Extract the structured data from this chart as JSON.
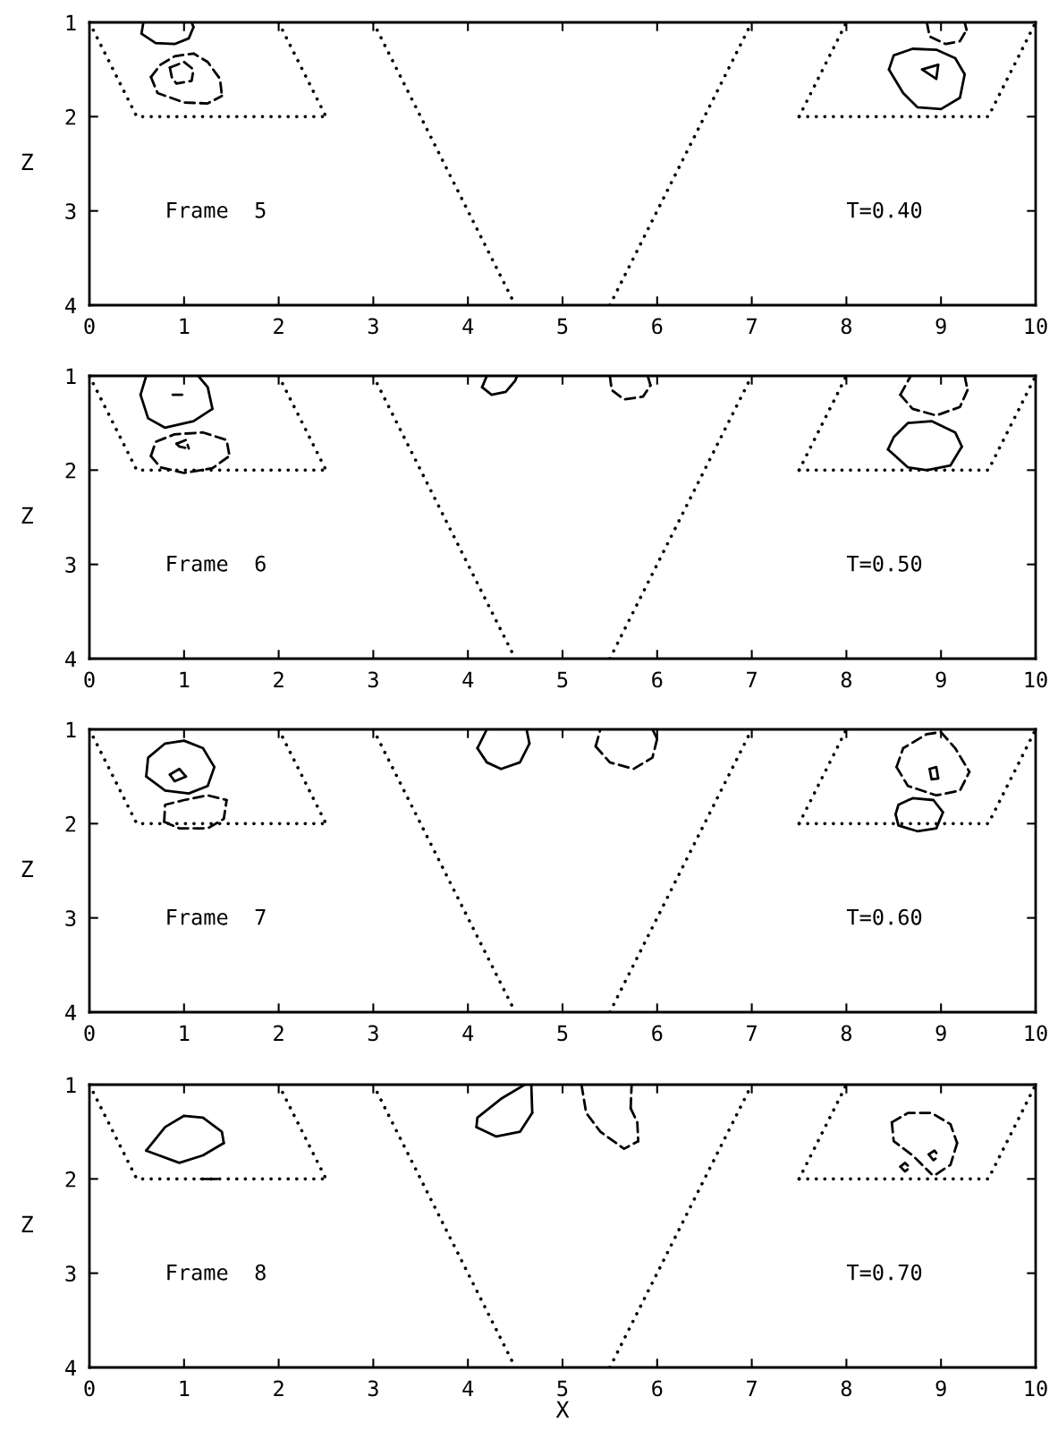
{
  "chart_data": [
    {
      "type": "line",
      "ylabel": "Z",
      "xlim": [
        0,
        10
      ],
      "ylim": [
        4,
        1
      ],
      "xticks": [
        0,
        1,
        2,
        3,
        4,
        5,
        6,
        7,
        8,
        9,
        10
      ],
      "yticks": [
        1,
        2,
        3,
        4
      ],
      "grid": false,
      "marker": "none",
      "annotations": [
        "Frame  5",
        "T=0.40"
      ],
      "series": [
        {
          "color": "#000000",
          "line_style": "solid",
          "x": [
            0.55,
            0.57
          ],
          "values": [
            1.12,
            1.0
          ]
        },
        {
          "color": "#000000",
          "line_style": "solid",
          "x": [
            0.55,
            0.7,
            0.9,
            1.05,
            1.1
          ],
          "values": [
            1.12,
            1.22,
            1.23,
            1.17,
            1.05
          ]
        },
        {
          "color": "#000000",
          "line_style": "solid",
          "x": [
            1.08,
            1.1
          ],
          "values": [
            1.0,
            1.05
          ]
        },
        {
          "color": "#000000",
          "line_style": "dashed",
          "x": [
            0.65,
            0.75,
            0.9,
            1.1,
            1.25,
            1.38,
            1.4
          ],
          "values": [
            1.58,
            1.45,
            1.36,
            1.33,
            1.42,
            1.6,
            1.78
          ]
        },
        {
          "color": "#000000",
          "line_style": "dashed",
          "x": [
            0.65,
            0.72,
            1.0,
            1.25,
            1.4
          ],
          "values": [
            1.58,
            1.75,
            1.85,
            1.86,
            1.78
          ]
        },
        {
          "color": "#000000",
          "line_style": "dashed",
          "x": [
            0.85,
            1.0,
            1.1
          ],
          "values": [
            1.48,
            1.42,
            1.5
          ]
        },
        {
          "color": "#000000",
          "line_style": "dashed",
          "x": [
            0.85,
            0.87,
            0.92,
            1.08,
            1.1
          ],
          "values": [
            1.48,
            1.58,
            1.65,
            1.62,
            1.5
          ]
        },
        {
          "color": "#000000",
          "line_style": "dashed",
          "x": [
            8.85,
            8.88,
            9.05,
            9.2,
            9.27
          ],
          "values": [
            1.0,
            1.15,
            1.23,
            1.2,
            1.08
          ]
        },
        {
          "color": "#000000",
          "line_style": "dashed",
          "x": [
            9.25,
            9.27
          ],
          "values": [
            1.0,
            1.08
          ]
        },
        {
          "color": "#000000",
          "line_style": "solid",
          "x": [
            8.45,
            8.5,
            8.7,
            8.95,
            9.15,
            9.25
          ],
          "values": [
            1.5,
            1.35,
            1.28,
            1.29,
            1.38,
            1.55
          ]
        },
        {
          "color": "#000000",
          "line_style": "solid",
          "x": [
            8.45,
            8.6,
            8.75,
            9.0,
            9.2,
            9.25
          ],
          "values": [
            1.5,
            1.75,
            1.9,
            1.92,
            1.8,
            1.55
          ]
        },
        {
          "color": "#000000",
          "line_style": "solid",
          "x": [
            8.8,
            8.97
          ],
          "values": [
            1.5,
            1.45
          ]
        },
        {
          "color": "#000000",
          "line_style": "solid",
          "x": [
            8.8,
            8.95,
            8.97
          ],
          "values": [
            1.5,
            1.6,
            1.45
          ]
        },
        {
          "color": "#000000",
          "line_style": "dotted",
          "x": [
            0,
            0.5,
            2.5
          ],
          "values": [
            1,
            2,
            2
          ]
        },
        {
          "color": "#000000",
          "line_style": "dotted",
          "x": [
            2,
            2.5
          ],
          "values": [
            1,
            2
          ]
        },
        {
          "color": "#000000",
          "line_style": "dotted",
          "x": [
            7.5,
            8
          ],
          "values": [
            2,
            1
          ]
        },
        {
          "color": "#000000",
          "line_style": "dotted",
          "x": [
            7.5,
            9.5,
            10
          ],
          "values": [
            2,
            2,
            1
          ]
        },
        {
          "color": "#000000",
          "line_style": "dotted",
          "x": [
            3,
            4.5
          ],
          "values": [
            1,
            4
          ]
        },
        {
          "color": "#000000",
          "line_style": "dotted",
          "x": [
            5.5,
            7
          ],
          "values": [
            4,
            1
          ]
        }
      ]
    },
    {
      "type": "line",
      "ylabel": "Z",
      "xlim": [
        0,
        10
      ],
      "ylim": [
        4,
        1
      ],
      "xticks": [
        0,
        1,
        2,
        3,
        4,
        5,
        6,
        7,
        8,
        9,
        10
      ],
      "yticks": [
        1,
        2,
        3,
        4
      ],
      "grid": false,
      "marker": "none",
      "annotations": [
        "Frame  6",
        "T=0.50"
      ],
      "series": [
        {
          "color": "#000000",
          "line_style": "solid",
          "x": [
            0.54,
            0.6
          ],
          "values": [
            1.2,
            1.0
          ]
        },
        {
          "color": "#000000",
          "line_style": "solid",
          "x": [
            0.54,
            0.62,
            0.8,
            1.1,
            1.3
          ],
          "values": [
            1.2,
            1.45,
            1.55,
            1.48,
            1.35
          ]
        },
        {
          "color": "#000000",
          "line_style": "solid",
          "x": [
            1.15,
            1.25,
            1.3
          ],
          "values": [
            1.0,
            1.12,
            1.35
          ]
        },
        {
          "color": "#000000",
          "line_style": "solid",
          "x": [
            0.88,
            0.98
          ],
          "values": [
            1.2,
            1.2
          ]
        },
        {
          "color": "#000000",
          "line_style": "dashed",
          "x": [
            0.65,
            0.7,
            0.9,
            1.2,
            1.45,
            1.48
          ],
          "values": [
            1.85,
            1.7,
            1.62,
            1.6,
            1.68,
            1.85
          ]
        },
        {
          "color": "#000000",
          "line_style": "dashed",
          "x": [
            0.65,
            0.75,
            1.0,
            1.3,
            1.48
          ],
          "values": [
            1.85,
            1.97,
            2.03,
            1.98,
            1.85
          ]
        },
        {
          "color": "#000000",
          "line_style": "dashed",
          "x": [
            0.92,
            1.02,
            1.05
          ],
          "values": [
            1.72,
            1.68,
            1.77
          ]
        },
        {
          "color": "#000000",
          "line_style": "dashed",
          "x": [
            0.92,
            0.95,
            1.05
          ],
          "values": [
            1.72,
            1.75,
            1.77
          ]
        },
        {
          "color": "#000000",
          "line_style": "solid",
          "x": [
            4.15,
            4.2
          ],
          "values": [
            1.12,
            1.0
          ]
        },
        {
          "color": "#000000",
          "line_style": "solid",
          "x": [
            4.15,
            4.25,
            4.4,
            4.5,
            4.52
          ],
          "values": [
            1.12,
            1.2,
            1.17,
            1.05,
            1.0
          ]
        },
        {
          "color": "#000000",
          "line_style": "dashed",
          "x": [
            5.5,
            5.52,
            5.65,
            5.85,
            5.93
          ],
          "values": [
            1.0,
            1.15,
            1.25,
            1.22,
            1.1
          ]
        },
        {
          "color": "#000000",
          "line_style": "dashed",
          "x": [
            5.9,
            5.93
          ],
          "values": [
            1.0,
            1.1
          ]
        },
        {
          "color": "#000000",
          "line_style": "dashed",
          "x": [
            8.57,
            8.68
          ],
          "values": [
            1.2,
            1.0
          ]
        },
        {
          "color": "#000000",
          "line_style": "dashed",
          "x": [
            8.57,
            8.7,
            8.95,
            9.2,
            9.28
          ],
          "values": [
            1.2,
            1.35,
            1.42,
            1.33,
            1.15
          ]
        },
        {
          "color": "#000000",
          "line_style": "dashed",
          "x": [
            9.25,
            9.28
          ],
          "values": [
            1.0,
            1.15
          ]
        },
        {
          "color": "#000000",
          "line_style": "solid",
          "x": [
            8.44,
            8.5,
            8.65,
            8.9,
            9.15,
            9.22
          ],
          "values": [
            1.78,
            1.65,
            1.5,
            1.48,
            1.6,
            1.75
          ]
        },
        {
          "color": "#000000",
          "line_style": "solid",
          "x": [
            8.44,
            8.65,
            8.85,
            9.1,
            9.22
          ],
          "values": [
            1.78,
            1.97,
            2.0,
            1.95,
            1.75
          ]
        },
        {
          "color": "#000000",
          "line_style": "dotted",
          "x": [
            0,
            0.5,
            2.5
          ],
          "values": [
            1,
            2,
            2
          ]
        },
        {
          "color": "#000000",
          "line_style": "dotted",
          "x": [
            2,
            2.5
          ],
          "values": [
            1,
            2
          ]
        },
        {
          "color": "#000000",
          "line_style": "dotted",
          "x": [
            7.5,
            8
          ],
          "values": [
            2,
            1
          ]
        },
        {
          "color": "#000000",
          "line_style": "dotted",
          "x": [
            7.5,
            9.5,
            10
          ],
          "values": [
            2,
            2,
            1
          ]
        },
        {
          "color": "#000000",
          "line_style": "dotted",
          "x": [
            3,
            4.5
          ],
          "values": [
            1,
            4
          ]
        },
        {
          "color": "#000000",
          "line_style": "dotted",
          "x": [
            5.5,
            7
          ],
          "values": [
            4,
            1
          ]
        }
      ]
    },
    {
      "type": "line",
      "ylabel": "Z",
      "xlim": [
        0,
        10
      ],
      "ylim": [
        4,
        1
      ],
      "xticks": [
        0,
        1,
        2,
        3,
        4,
        5,
        6,
        7,
        8,
        9,
        10
      ],
      "yticks": [
        1,
        2,
        3,
        4
      ],
      "grid": false,
      "marker": "none",
      "annotations": [
        "Frame  7",
        "T=0.60"
      ],
      "series": [
        {
          "color": "#000000",
          "line_style": "solid",
          "x": [
            0.6,
            0.62,
            0.8,
            1.0,
            1.2,
            1.32
          ],
          "values": [
            1.5,
            1.3,
            1.15,
            1.12,
            1.2,
            1.4
          ]
        },
        {
          "color": "#000000",
          "line_style": "solid",
          "x": [
            0.6,
            0.8,
            1.05,
            1.25,
            1.32
          ],
          "values": [
            1.5,
            1.65,
            1.68,
            1.6,
            1.4
          ]
        },
        {
          "color": "#000000",
          "line_style": "solid",
          "x": [
            0.85,
            0.95,
            1.02
          ],
          "values": [
            1.48,
            1.42,
            1.5
          ]
        },
        {
          "color": "#000000",
          "line_style": "solid",
          "x": [
            0.85,
            0.9,
            1.02
          ],
          "values": [
            1.48,
            1.55,
            1.5
          ]
        },
        {
          "color": "#000000",
          "line_style": "dashed",
          "x": [
            0.79,
            0.8,
            1.0,
            1.25,
            1.45
          ],
          "values": [
            1.98,
            1.8,
            1.75,
            1.7,
            1.75
          ]
        },
        {
          "color": "#000000",
          "line_style": "dashed",
          "x": [
            0.79,
            0.95,
            1.25,
            1.42,
            1.45
          ],
          "values": [
            1.98,
            2.05,
            2.05,
            1.95,
            1.75
          ]
        },
        {
          "color": "#000000",
          "line_style": "solid",
          "x": [
            4.1,
            4.2
          ],
          "values": [
            1.2,
            1.0
          ]
        },
        {
          "color": "#000000",
          "line_style": "solid",
          "x": [
            4.1,
            4.2,
            4.35,
            4.55,
            4.65
          ],
          "values": [
            1.2,
            1.35,
            1.42,
            1.35,
            1.15
          ]
        },
        {
          "color": "#000000",
          "line_style": "solid",
          "x": [
            4.62,
            4.65
          ],
          "values": [
            1.0,
            1.15
          ]
        },
        {
          "color": "#000000",
          "line_style": "dashed",
          "x": [
            5.35,
            5.4
          ],
          "values": [
            1.18,
            1.0
          ]
        },
        {
          "color": "#000000",
          "line_style": "dashed",
          "x": [
            5.35,
            5.5,
            5.75,
            5.95,
            6.0
          ],
          "values": [
            1.18,
            1.35,
            1.42,
            1.3,
            1.1
          ]
        },
        {
          "color": "#000000",
          "line_style": "dashed",
          "x": [
            5.95,
            6.0
          ],
          "values": [
            1.0,
            1.1
          ]
        },
        {
          "color": "#000000",
          "line_style": "dashed",
          "x": [
            8.53,
            8.6,
            8.85,
            9.0,
            9.15,
            9.3
          ],
          "values": [
            1.4,
            1.2,
            1.05,
            1.03,
            1.2,
            1.45
          ]
        },
        {
          "color": "#000000",
          "line_style": "dashed",
          "x": [
            8.53,
            8.65,
            8.95,
            9.2,
            9.3
          ],
          "values": [
            1.4,
            1.6,
            1.7,
            1.65,
            1.45
          ]
        },
        {
          "color": "#000000",
          "line_style": "solid",
          "x": [
            8.88,
            8.95,
            8.97
          ],
          "values": [
            1.42,
            1.4,
            1.52
          ]
        },
        {
          "color": "#000000",
          "line_style": "solid",
          "x": [
            8.88,
            8.9,
            8.97
          ],
          "values": [
            1.42,
            1.53,
            1.52
          ]
        },
        {
          "color": "#000000",
          "line_style": "solid",
          "x": [
            8.52,
            8.55,
            8.7,
            8.92,
            9.02
          ],
          "values": [
            1.9,
            1.8,
            1.73,
            1.75,
            1.88
          ]
        },
        {
          "color": "#000000",
          "line_style": "solid",
          "x": [
            8.52,
            8.55,
            8.75,
            8.95,
            9.02
          ],
          "values": [
            1.9,
            2.02,
            2.08,
            2.05,
            1.88
          ]
        },
        {
          "color": "#000000",
          "line_style": "dotted",
          "x": [
            0,
            0.5,
            2.5
          ],
          "values": [
            1,
            2,
            2
          ]
        },
        {
          "color": "#000000",
          "line_style": "dotted",
          "x": [
            2,
            2.5
          ],
          "values": [
            1,
            2
          ]
        },
        {
          "color": "#000000",
          "line_style": "dotted",
          "x": [
            7.5,
            8
          ],
          "values": [
            2,
            1
          ]
        },
        {
          "color": "#000000",
          "line_style": "dotted",
          "x": [
            7.5,
            9.5,
            10
          ],
          "values": [
            2,
            2,
            1
          ]
        },
        {
          "color": "#000000",
          "line_style": "dotted",
          "x": [
            3,
            4.5
          ],
          "values": [
            1,
            4
          ]
        },
        {
          "color": "#000000",
          "line_style": "dotted",
          "x": [
            5.5,
            7
          ],
          "values": [
            4,
            1
          ]
        }
      ]
    },
    {
      "type": "line",
      "xlabel": "X",
      "ylabel": "Z",
      "xlim": [
        0,
        10
      ],
      "ylim": [
        4,
        1
      ],
      "xticks": [
        0,
        1,
        2,
        3,
        4,
        5,
        6,
        7,
        8,
        9,
        10
      ],
      "yticks": [
        1,
        2,
        3,
        4
      ],
      "grid": false,
      "marker": "none",
      "annotations": [
        "Frame  8",
        "T=0.70"
      ],
      "series": [
        {
          "color": "#000000",
          "line_style": "solid",
          "x": [
            0.6,
            0.8,
            1.0,
            1.2,
            1.4,
            1.42
          ],
          "values": [
            1.7,
            1.45,
            1.33,
            1.35,
            1.5,
            1.62
          ]
        },
        {
          "color": "#000000",
          "line_style": "solid",
          "x": [
            0.6,
            0.95,
            1.2,
            1.42
          ],
          "values": [
            1.7,
            1.83,
            1.75,
            1.62
          ]
        },
        {
          "color": "#000000",
          "line_style": "solid",
          "x": [
            1.18,
            1.35
          ],
          "values": [
            2.0,
            2.0
          ]
        },
        {
          "color": "#000000",
          "line_style": "solid",
          "x": [
            4.09,
            4.1,
            4.35,
            4.6
          ],
          "values": [
            1.45,
            1.35,
            1.15,
            1.0
          ]
        },
        {
          "color": "#000000",
          "line_style": "solid",
          "x": [
            4.09,
            4.3,
            4.55,
            4.68
          ],
          "values": [
            1.45,
            1.55,
            1.5,
            1.3
          ]
        },
        {
          "color": "#000000",
          "line_style": "solid",
          "x": [
            4.67,
            4.68
          ],
          "values": [
            1.0,
            1.3
          ]
        },
        {
          "color": "#000000",
          "line_style": "dashed",
          "x": [
            5.2,
            5.25,
            5.4,
            5.65,
            5.8
          ],
          "values": [
            1.0,
            1.3,
            1.5,
            1.68,
            1.6
          ]
        },
        {
          "color": "#000000",
          "line_style": "dashed",
          "x": [
            5.72,
            5.79,
            5.8
          ],
          "values": [
            1.25,
            1.4,
            1.6
          ]
        },
        {
          "color": "#000000",
          "line_style": "dashed",
          "x": [
            5.72,
            5.73
          ],
          "values": [
            1.25,
            1.0
          ]
        },
        {
          "color": "#000000",
          "line_style": "dashed",
          "x": [
            8.48,
            8.65,
            8.9,
            9.1,
            9.17
          ],
          "values": [
            1.4,
            1.3,
            1.3,
            1.42,
            1.62
          ]
        },
        {
          "color": "#000000",
          "line_style": "dashed",
          "x": [
            8.48,
            8.5,
            8.7,
            8.9
          ],
          "values": [
            1.4,
            1.6,
            1.75,
            1.95
          ]
        },
        {
          "color": "#000000",
          "line_style": "dashed",
          "x": [
            8.95,
            9.1,
            9.17
          ],
          "values": [
            1.95,
            1.85,
            1.62
          ]
        },
        {
          "color": "#000000",
          "line_style": "dashed",
          "x": [
            8.57,
            8.62,
            8.67
          ],
          "values": [
            1.87,
            1.83,
            1.88
          ]
        },
        {
          "color": "#000000",
          "line_style": "dashed",
          "x": [
            8.57,
            8.62,
            8.67
          ],
          "values": [
            1.87,
            1.92,
            1.88
          ]
        },
        {
          "color": "#000000",
          "line_style": "dashed",
          "x": [
            8.87,
            8.93,
            8.98
          ],
          "values": [
            1.74,
            1.7,
            1.76
          ]
        },
        {
          "color": "#000000",
          "line_style": "dashed",
          "x": [
            8.87,
            8.92,
            8.98
          ],
          "values": [
            1.74,
            1.8,
            1.76
          ]
        },
        {
          "color": "#000000",
          "line_style": "dotted",
          "x": [
            0,
            0.5,
            2.5
          ],
          "values": [
            1,
            2,
            2
          ]
        },
        {
          "color": "#000000",
          "line_style": "dotted",
          "x": [
            2,
            2.5
          ],
          "values": [
            1,
            2
          ]
        },
        {
          "color": "#000000",
          "line_style": "dotted",
          "x": [
            7.5,
            8
          ],
          "values": [
            2,
            1
          ]
        },
        {
          "color": "#000000",
          "line_style": "dotted",
          "x": [
            7.5,
            9.5,
            10
          ],
          "values": [
            2,
            2,
            1
          ]
        },
        {
          "color": "#000000",
          "line_style": "dotted",
          "x": [
            3,
            4.5
          ],
          "values": [
            1,
            4
          ]
        },
        {
          "color": "#000000",
          "line_style": "dotted",
          "x": [
            5.5,
            7
          ],
          "values": [
            4,
            1
          ]
        }
      ]
    }
  ]
}
